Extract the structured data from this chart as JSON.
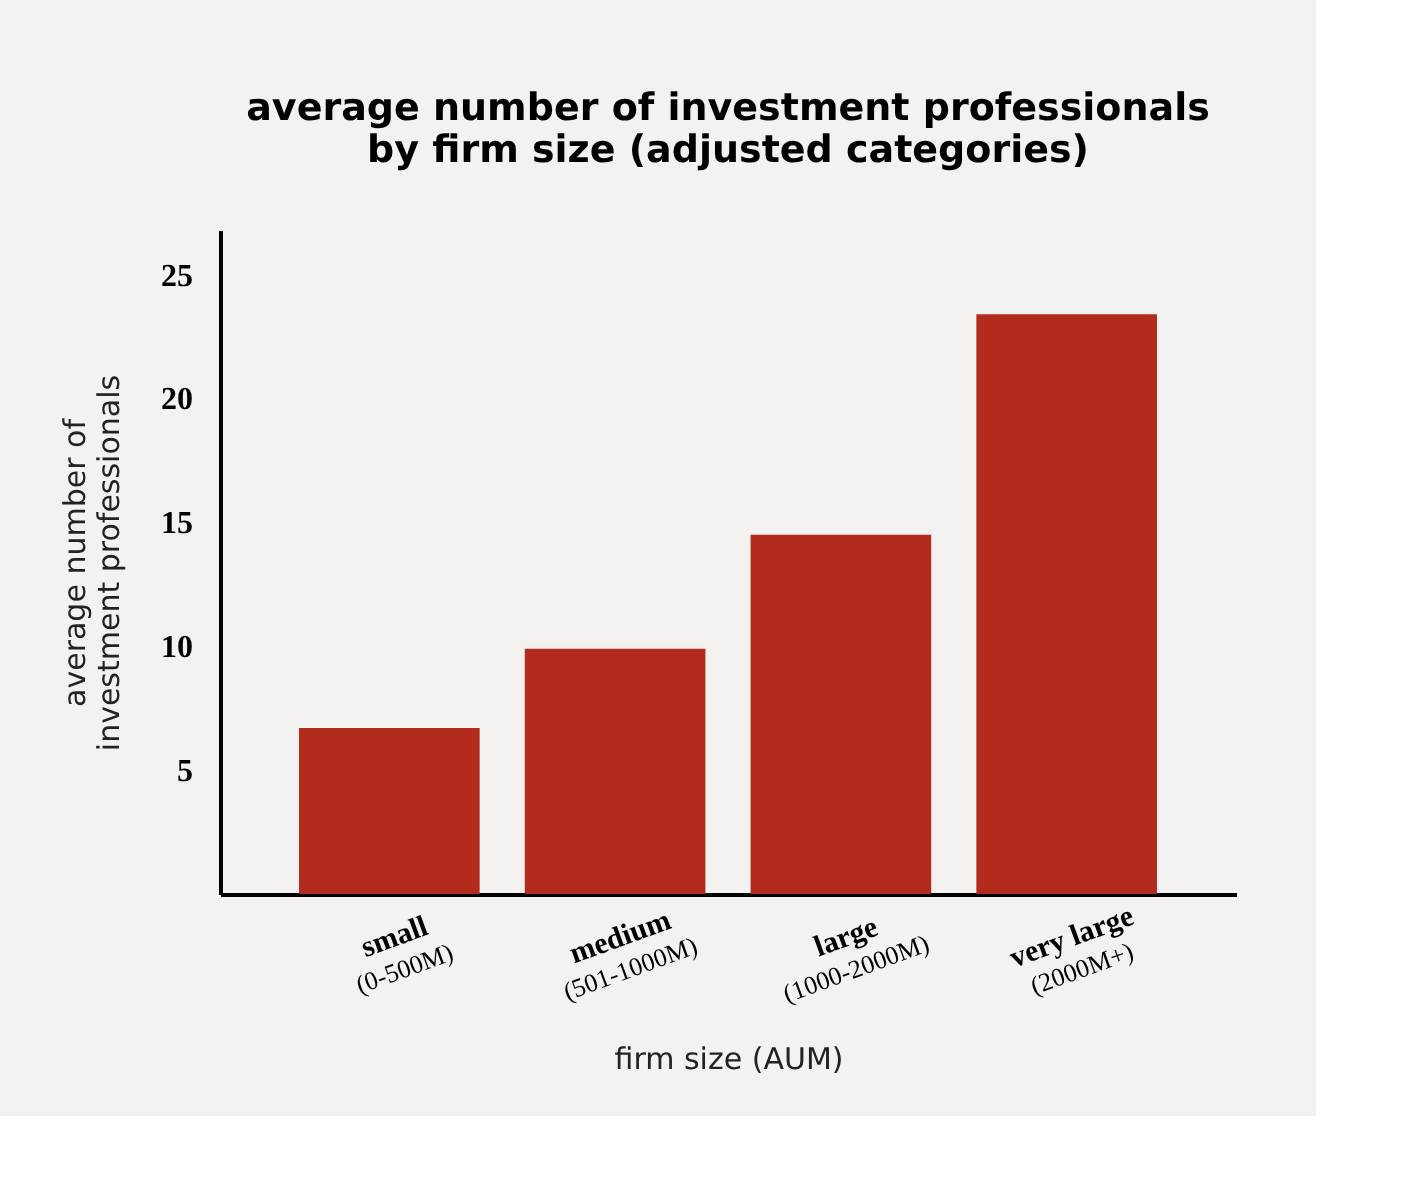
{
  "chart_data": {
    "type": "bar",
    "title": "average number of investment professionals\nby firm size (adjusted categories)",
    "categories": [
      "small\n(0-500M)",
      "medium\n(501-1000M)",
      "large\n(1000-2000M)",
      "very large\n(2000M+)"
    ],
    "values": [
      6.7,
      9.9,
      14.5,
      23.4
    ],
    "color": "#b22b1d",
    "xlabel": "firm size (AUM)",
    "ylabel": "average number of\ninvestment professionals",
    "ylim": [
      0,
      26.8
    ],
    "yticks": [
      5,
      10,
      15,
      20,
      25
    ],
    "grid": false
  }
}
